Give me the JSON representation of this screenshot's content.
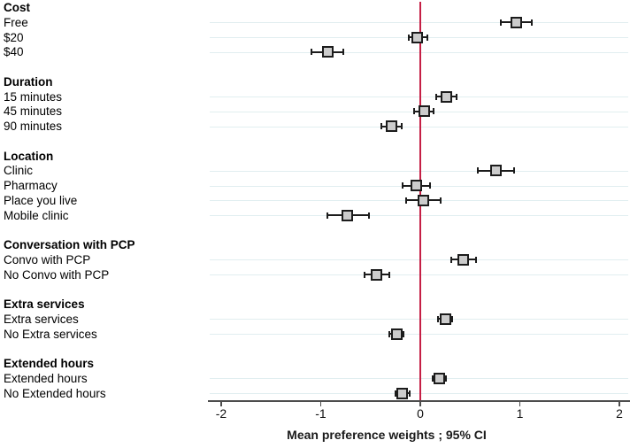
{
  "chart_data": {
    "type": "forest",
    "title": "",
    "xlabel": "Mean preference weights ; 95% CI",
    "xlim": [
      -2,
      2
    ],
    "x_ticks": [
      "-2",
      "-1",
      "0",
      "1",
      "2"
    ],
    "x_tick_values": [
      -2,
      -1,
      0,
      1,
      2
    ],
    "reference_line_x": 0,
    "grid": "horizontal-per-row",
    "legend": "none",
    "groups": [
      {
        "label": "Cost",
        "items": [
          {
            "label": "Free",
            "mean": 0.96,
            "ci_low": 0.81,
            "ci_high": 1.12
          },
          {
            "label": "$20",
            "mean": -0.03,
            "ci_low": -0.12,
            "ci_high": 0.07
          },
          {
            "label": "$40",
            "mean": -0.93,
            "ci_low": -1.09,
            "ci_high": -0.77
          }
        ]
      },
      {
        "label": "Duration",
        "items": [
          {
            "label": "15 minutes",
            "mean": 0.26,
            "ci_low": 0.16,
            "ci_high": 0.36
          },
          {
            "label": "45 minutes",
            "mean": 0.04,
            "ci_low": -0.06,
            "ci_high": 0.13
          },
          {
            "label": "90 minutes",
            "mean": -0.29,
            "ci_low": -0.39,
            "ci_high": -0.19
          }
        ]
      },
      {
        "label": "Location",
        "items": [
          {
            "label": "Clinic",
            "mean": 0.76,
            "ci_low": 0.58,
            "ci_high": 0.94
          },
          {
            "label": "Pharmacy",
            "mean": -0.04,
            "ci_low": -0.18,
            "ci_high": 0.1
          },
          {
            "label": "Place you live",
            "mean": 0.03,
            "ci_low": -0.14,
            "ci_high": 0.2
          },
          {
            "label": "Mobile clinic",
            "mean": -0.73,
            "ci_low": -0.93,
            "ci_high": -0.52
          }
        ]
      },
      {
        "label": "Conversation with PCP",
        "items": [
          {
            "label": "Convo with PCP",
            "mean": 0.43,
            "ci_low": 0.31,
            "ci_high": 0.56
          },
          {
            "label": "No Convo with PCP",
            "mean": -0.44,
            "ci_low": -0.56,
            "ci_high": -0.31
          }
        ]
      },
      {
        "label": "Extra services",
        "items": [
          {
            "label": "Extra services",
            "mean": 0.25,
            "ci_low": 0.18,
            "ci_high": 0.32
          },
          {
            "label": "No Extra services",
            "mean": -0.24,
            "ci_low": -0.31,
            "ci_high": -0.17
          }
        ]
      },
      {
        "label": "Extended hours",
        "items": [
          {
            "label": "Extended hours",
            "mean": 0.19,
            "ci_low": 0.12,
            "ci_high": 0.26
          },
          {
            "label": "No Extended hours",
            "mean": -0.18,
            "ci_low": -0.25,
            "ci_high": -0.11
          }
        ]
      }
    ],
    "colors": {
      "reference_line": "#c51f45",
      "marker_fill": "#cccccc",
      "marker_border": "#1c1c1c",
      "whisker": "#1c1c1c",
      "gridline": "#e1eef0",
      "axis": "#4d4d4d",
      "text": "#000000"
    }
  }
}
